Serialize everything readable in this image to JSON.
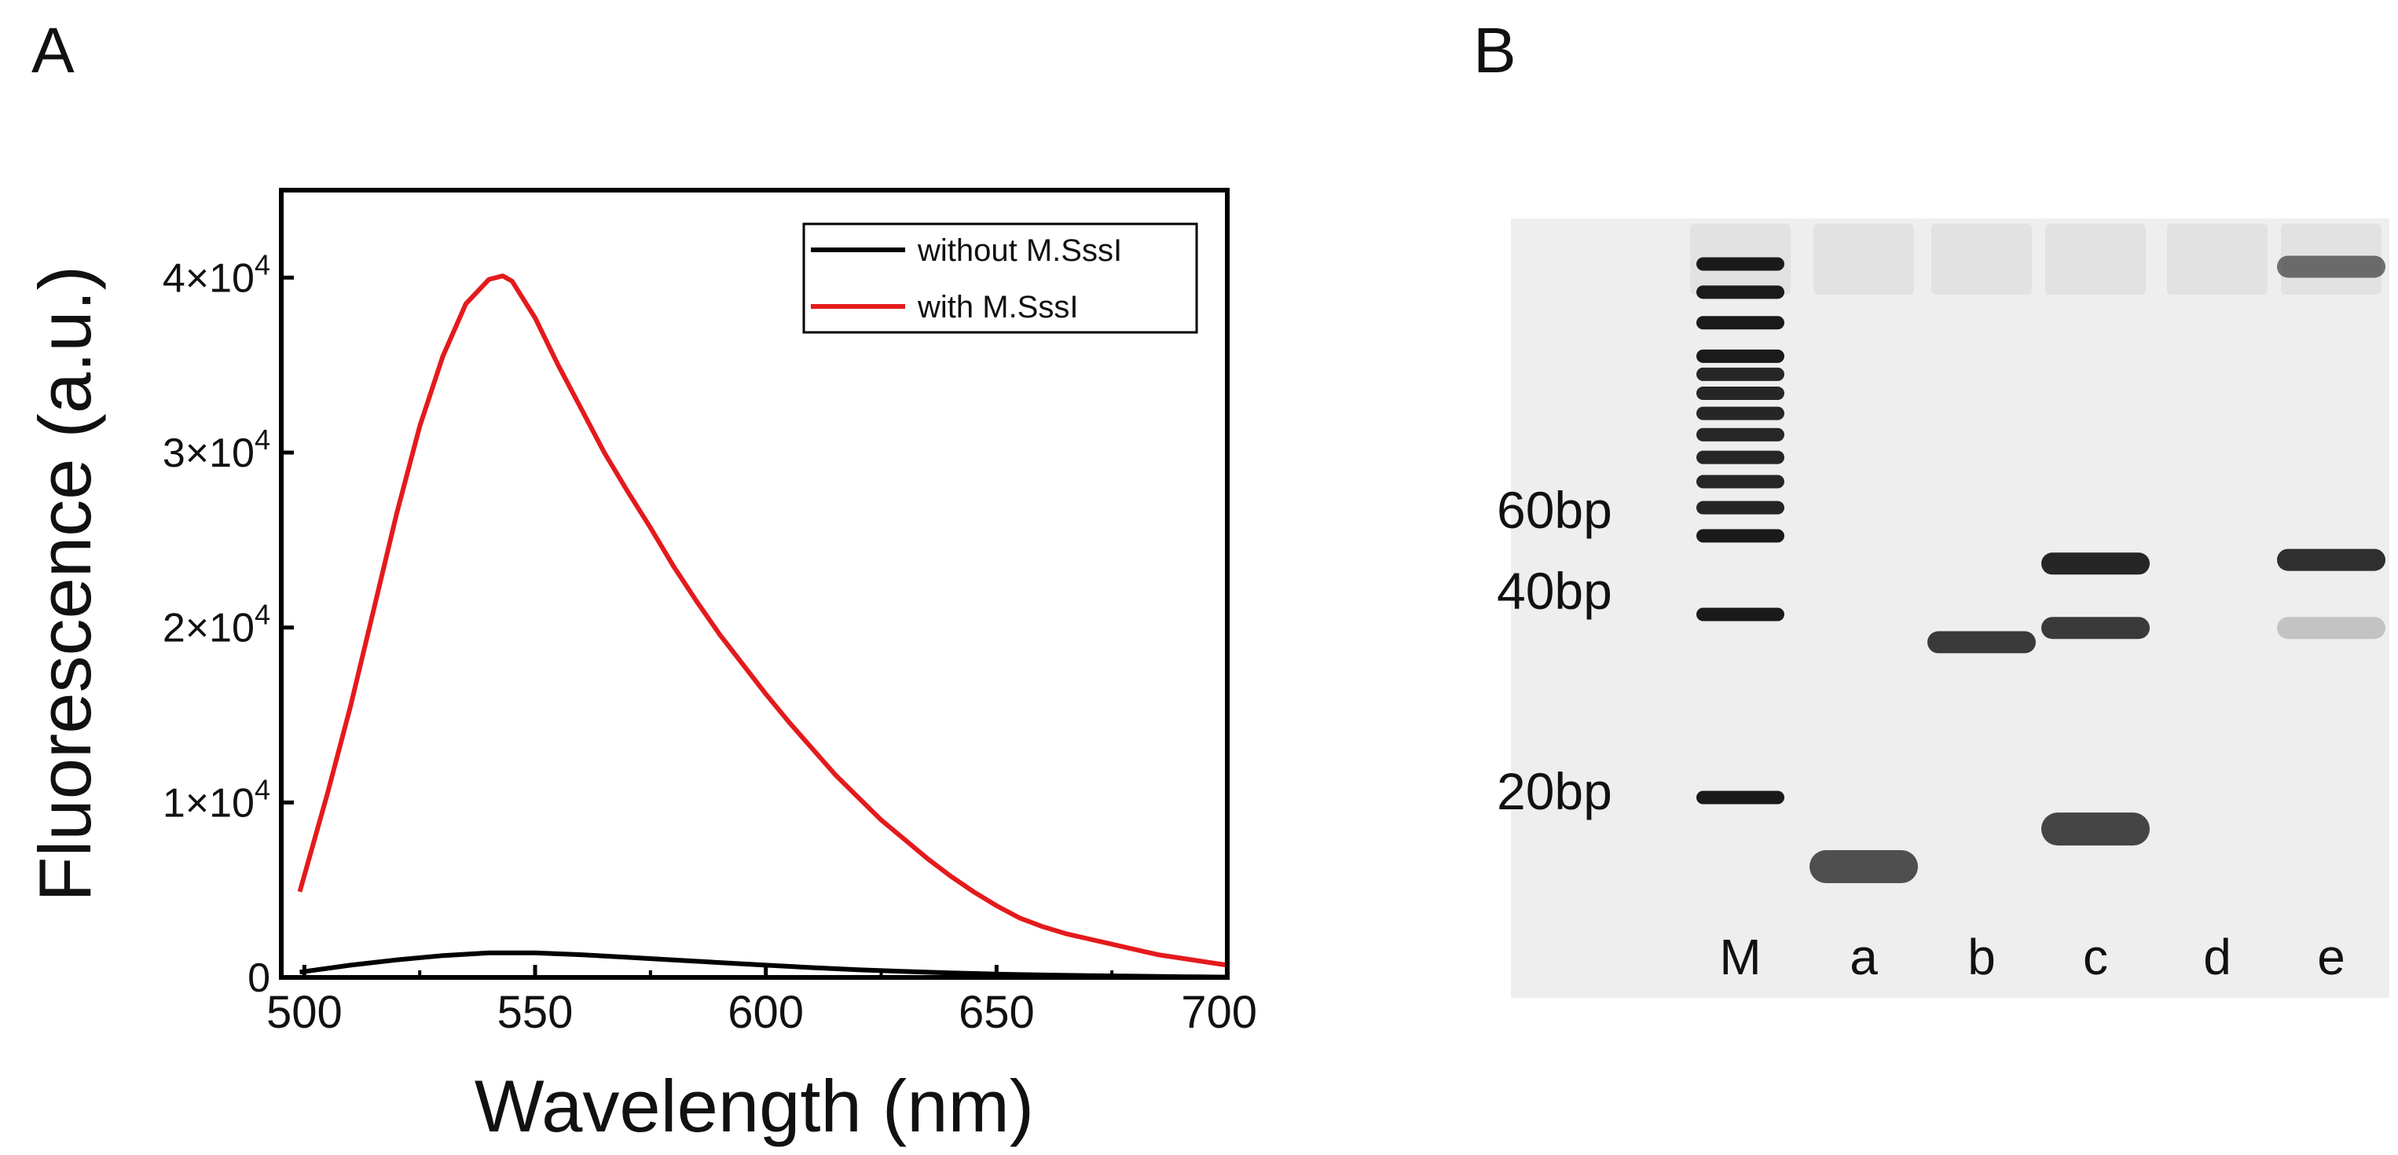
{
  "panels": {
    "a_label": "A",
    "b_label": "B"
  },
  "chart_data": {
    "type": "line",
    "title": "",
    "xlabel": "Wavelength (nm)",
    "ylabel": "Fluorescence (a.u.)",
    "xlim": [
      495,
      700
    ],
    "ylim": [
      0,
      45000
    ],
    "xticks": [
      500,
      550,
      600,
      650,
      700
    ],
    "xtick_labels": [
      "500",
      "550",
      "600",
      "650",
      "700"
    ],
    "yticks": [
      0,
      10000,
      20000,
      30000,
      40000
    ],
    "ytick_labels": [
      {
        "mantissa": "0",
        "exponent": ""
      },
      {
        "mantissa": "1×10",
        "exponent": "4"
      },
      {
        "mantissa": "2×10",
        "exponent": "4"
      },
      {
        "mantissa": "3×10",
        "exponent": "4"
      },
      {
        "mantissa": "4×10",
        "exponent": "4"
      }
    ],
    "legend_position": "top-right",
    "series": [
      {
        "name": "without M.SssI",
        "legend_label": "without M.SssI",
        "color": "#000000",
        "x": [
          499,
          510,
          520,
          530,
          540,
          550,
          560,
          570,
          580,
          590,
          600,
          610,
          620,
          630,
          640,
          650,
          660,
          670,
          680,
          690,
          700
        ],
        "y": [
          300,
          700,
          1000,
          1250,
          1400,
          1400,
          1300,
          1150,
          1000,
          850,
          700,
          560,
          440,
          340,
          260,
          190,
          140,
          100,
          70,
          40,
          20
        ]
      },
      {
        "name": "with M.SssI",
        "legend_label": "with M.SssI",
        "color": "#e41a1c",
        "x": [
          499,
          505,
          510,
          515,
          520,
          525,
          530,
          535,
          540,
          543,
          545,
          550,
          555,
          560,
          565,
          570,
          575,
          580,
          585,
          590,
          595,
          600,
          605,
          610,
          615,
          620,
          625,
          630,
          635,
          640,
          645,
          650,
          655,
          660,
          665,
          670,
          675,
          680,
          685,
          690,
          695,
          700
        ],
        "y": [
          4900,
          10500,
          15500,
          21000,
          26500,
          31500,
          35500,
          38500,
          39900,
          40100,
          39800,
          37700,
          35000,
          32500,
          30000,
          27800,
          25700,
          23500,
          21500,
          19600,
          17900,
          16200,
          14600,
          13100,
          11600,
          10300,
          9000,
          7900,
          6800,
          5800,
          4900,
          4100,
          3400,
          2900,
          2500,
          2200,
          1900,
          1600,
          1300,
          1100,
          900,
          700
        ]
      }
    ]
  },
  "gel": {
    "size_labels": [
      "60bp",
      "40bp",
      "20bp"
    ],
    "lane_labels": [
      "M",
      "a",
      "b",
      "c",
      "d",
      "e"
    ],
    "background_color": "#eeeeee",
    "band_color": "#1a1a1a",
    "lanes": [
      {
        "id": "M",
        "bands": [
          {
            "size": 130,
            "intensity": 1.0
          },
          {
            "size": 120,
            "intensity": 1.0
          },
          {
            "size": 110,
            "intensity": 1.0
          },
          {
            "size": 100,
            "intensity": 1.0
          },
          {
            "size": 95,
            "intensity": 0.95
          },
          {
            "size": 90,
            "intensity": 0.95
          },
          {
            "size": 85,
            "intensity": 0.95
          },
          {
            "size": 80,
            "intensity": 0.95
          },
          {
            "size": 75,
            "intensity": 0.95
          },
          {
            "size": 70,
            "intensity": 0.95
          },
          {
            "size": 65,
            "intensity": 0.95
          },
          {
            "size": 60,
            "intensity": 1.0
          },
          {
            "size": 40,
            "intensity": 1.0
          },
          {
            "size": 20,
            "intensity": 1.0
          }
        ]
      },
      {
        "id": "a",
        "bands": [
          {
            "size": 14,
            "intensity": 0.75
          }
        ]
      },
      {
        "id": "b",
        "bands": [
          {
            "size": 36,
            "intensity": 0.85
          }
        ]
      },
      {
        "id": "c",
        "bands": [
          {
            "size": 52,
            "intensity": 0.95
          },
          {
            "size": 38,
            "intensity": 0.85
          },
          {
            "size": 17,
            "intensity": 0.8
          }
        ]
      },
      {
        "id": "d",
        "bands": []
      },
      {
        "id": "e",
        "bands": [
          {
            "size": 129,
            "intensity": 0.6
          },
          {
            "size": 53,
            "intensity": 0.9
          },
          {
            "size": 38,
            "intensity": 0.2
          }
        ]
      }
    ]
  }
}
